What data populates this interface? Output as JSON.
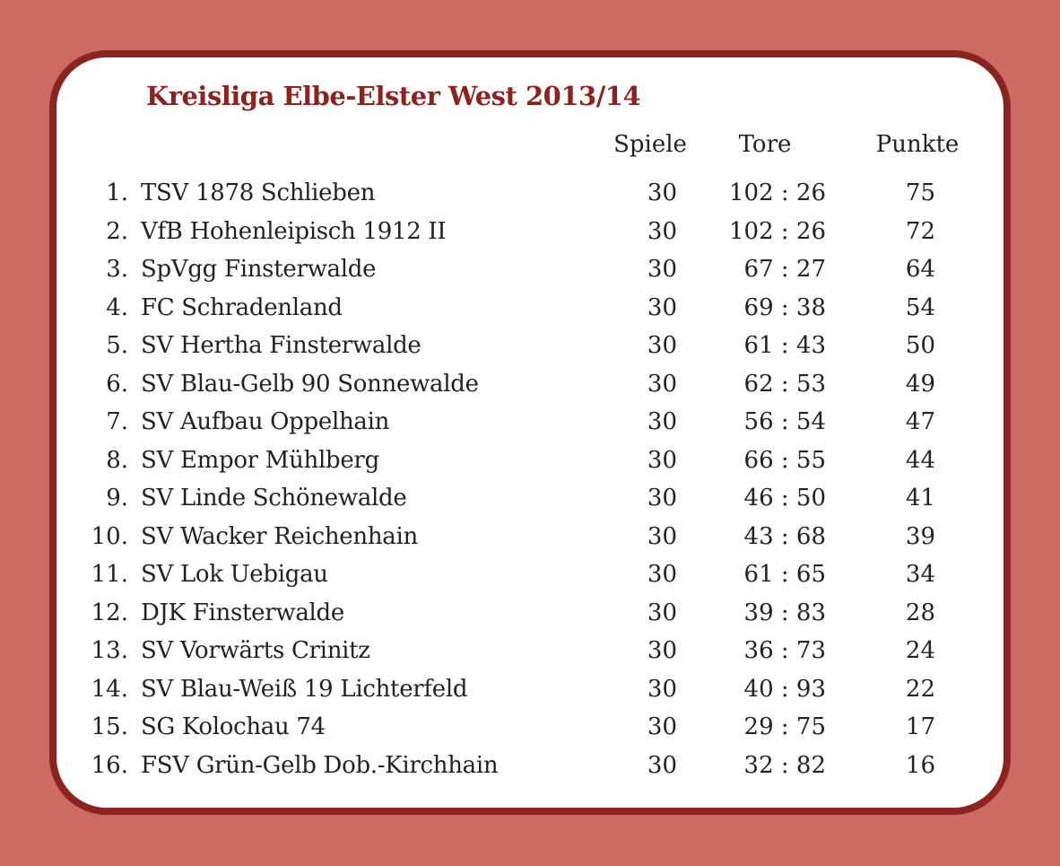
{
  "title": "Kreisliga Elbe-Elster West 2013/14",
  "colors": {
    "background": "#cc6b63",
    "border": "#8b2420",
    "title": "#8b2420",
    "card": "#ffffff",
    "text": "#222222"
  },
  "columns": {
    "spiele": "Spiele",
    "tore": "Tore",
    "punkte": "Punkte"
  },
  "rows": [
    {
      "rank": "1.",
      "team": "TSV 1878 Schlieben",
      "spiele": "30",
      "tore": "102 : 26",
      "punkte": "75"
    },
    {
      "rank": "2.",
      "team": "VfB Hohenleipisch 1912 II",
      "spiele": "30",
      "tore": "102 : 26",
      "punkte": "72"
    },
    {
      "rank": "3.",
      "team": "SpVgg Finsterwalde",
      "spiele": "30",
      "tore": "67 : 27",
      "punkte": "64"
    },
    {
      "rank": "4.",
      "team": "FC Schradenland",
      "spiele": "30",
      "tore": "69 : 38",
      "punkte": "54"
    },
    {
      "rank": "5.",
      "team": "SV Hertha Finsterwalde",
      "spiele": "30",
      "tore": "61 : 43",
      "punkte": "50"
    },
    {
      "rank": "6.",
      "team": "SV Blau-Gelb 90 Sonnewalde",
      "spiele": "30",
      "tore": "62 : 53",
      "punkte": "49"
    },
    {
      "rank": "7.",
      "team": "SV Aufbau Oppelhain",
      "spiele": "30",
      "tore": "56 : 54",
      "punkte": "47"
    },
    {
      "rank": "8.",
      "team": "SV Empor Mühlberg",
      "spiele": "30",
      "tore": "66 : 55",
      "punkte": "44"
    },
    {
      "rank": "9.",
      "team": "SV Linde Schönewalde",
      "spiele": "30",
      "tore": "46 : 50",
      "punkte": "41"
    },
    {
      "rank": "10.",
      "team": "SV Wacker Reichenhain",
      "spiele": "30",
      "tore": "43 : 68",
      "punkte": "39"
    },
    {
      "rank": "11.",
      "team": "SV Lok Uebigau",
      "spiele": "30",
      "tore": "61 : 65",
      "punkte": "34"
    },
    {
      "rank": "12.",
      "team": "DJK Finsterwalde",
      "spiele": "30",
      "tore": "39 : 83",
      "punkte": "28"
    },
    {
      "rank": "13.",
      "team": "SV Vorwärts Crinitz",
      "spiele": "30",
      "tore": "36 : 73",
      "punkte": "24"
    },
    {
      "rank": "14.",
      "team": "SV Blau-Weiß 19 Lichterfeld",
      "spiele": "30",
      "tore": "40 : 93",
      "punkte": "22"
    },
    {
      "rank": "15.",
      "team": "SG Kolochau 74",
      "spiele": "30",
      "tore": "29 : 75",
      "punkte": "17"
    },
    {
      "rank": "16.",
      "team": "FSV Grün-Gelb Dob.-Kirchhain",
      "spiele": "30",
      "tore": "32 : 82",
      "punkte": "16"
    }
  ]
}
